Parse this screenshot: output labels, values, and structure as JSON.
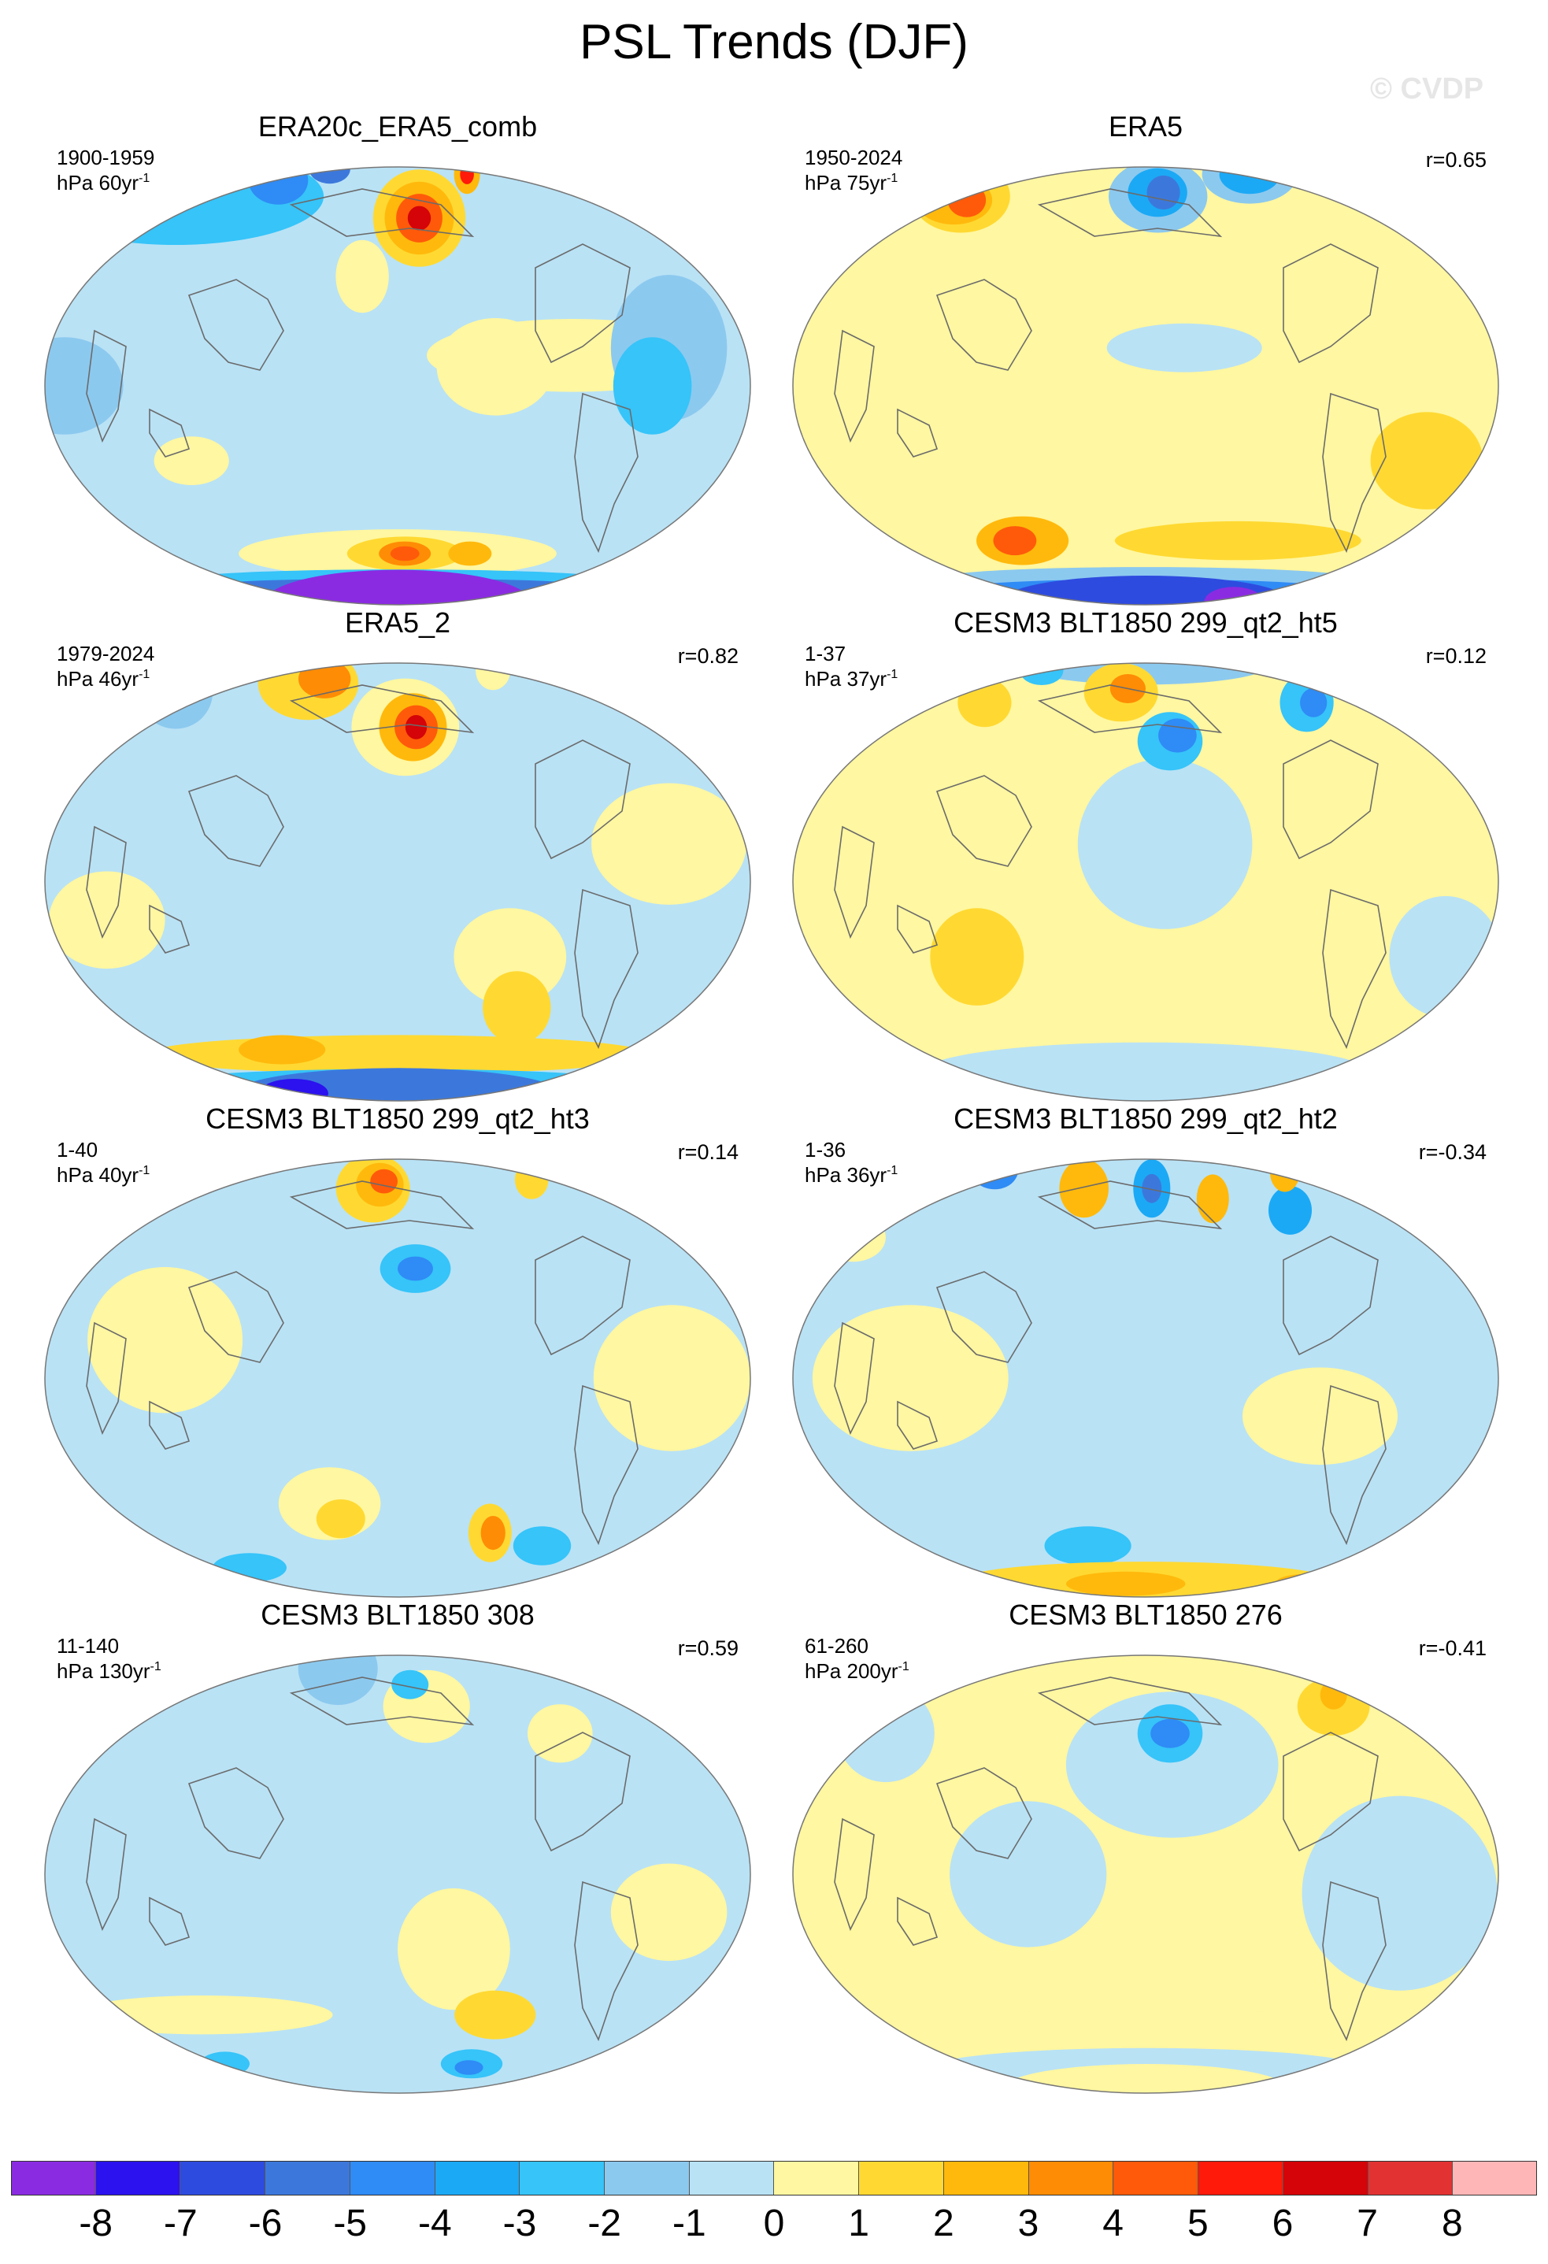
{
  "title": "PSL Trends (DJF)",
  "watermark": "© CVDP",
  "colors": {
    "-8": "#8a2be2",
    "-7": "#2b12ef",
    "-6": "#2e4bdf",
    "-5": "#3c78dc",
    "-4": "#2f8bf5",
    "-3": "#1ba9f5",
    "-2": "#36c4f9",
    "-1": "#8cc9ef",
    "0": "#b9e2f5",
    "1": "#fff7a1",
    "2": "#ffd932",
    "3": "#ffb90c",
    "4": "#ff8c05",
    "5": "#ff5a0a",
    "6": "#ff1a0a",
    "7": "#d40408",
    "8": "#e23232",
    "9": "#ffb6b6"
  },
  "colorbar": {
    "swatches": [
      "#8a2be2",
      "#2b12ef",
      "#2e4bdf",
      "#3c78dc",
      "#2f8bf5",
      "#1ba9f5",
      "#36c4f9",
      "#8cc9ef",
      "#b9e2f5",
      "#fff7a1",
      "#ffd932",
      "#ffb90c",
      "#ff8c05",
      "#ff5a0a",
      "#ff1a0a",
      "#d40408",
      "#e23232",
      "#ffb6b6"
    ],
    "ticks": [
      "-8",
      "-7",
      "-6",
      "-5",
      "-4",
      "-3",
      "-2",
      "-1",
      "0",
      "1",
      "2",
      "3",
      "4",
      "5",
      "6",
      "7",
      "8"
    ]
  },
  "panels": [
    {
      "title": "ERA20c_ERA5_comb",
      "period": "1900-1959",
      "units": "hPa 60yr",
      "unit_exp": "-1",
      "r": "",
      "base": 0,
      "blobs": [
        {
          "lon": -165,
          "lat": 50,
          "rx": 32,
          "ry": 20,
          "level": 2
        },
        {
          "lon": -165,
          "lat": 50,
          "rx": 24,
          "ry": 15,
          "level": 3
        },
        {
          "lon": -165,
          "lat": 50,
          "rx": 16,
          "ry": 10,
          "level": 5
        },
        {
          "lon": -165,
          "lat": 50,
          "rx": 8,
          "ry": 5,
          "level": 7
        },
        {
          "lon": -90,
          "lat": 8,
          "rx": 75,
          "ry": 15,
          "level": 1
        },
        {
          "lon": 160,
          "lat": 30,
          "rx": 15,
          "ry": 15,
          "level": 1
        },
        {
          "lon": -130,
          "lat": 5,
          "rx": 30,
          "ry": 20,
          "level": 1
        },
        {
          "lon": 0,
          "lat": 60,
          "rx": 120,
          "ry": 20,
          "level": -2
        },
        {
          "lon": 60,
          "lat": 70,
          "rx": 30,
          "ry": 10,
          "level": -4
        },
        {
          "lon": 80,
          "lat": 82,
          "rx": 30,
          "ry": 6,
          "level": -5
        },
        {
          "lon": -100,
          "lat": 75,
          "rx": 15,
          "ry": 8,
          "level": 3
        },
        {
          "lon": -100,
          "lat": 75,
          "rx": 8,
          "ry": 4,
          "level": 6
        },
        {
          "lon": -40,
          "lat": 10,
          "rx": 30,
          "ry": 30,
          "level": -1
        },
        {
          "lon": -50,
          "lat": 0,
          "rx": 20,
          "ry": 20,
          "level": -2
        },
        {
          "lon": 10,
          "lat": 0,
          "rx": 30,
          "ry": 20,
          "level": -1
        },
        {
          "lon": 70,
          "lat": -20,
          "rx": 20,
          "ry": 10,
          "level": 1
        },
        {
          "lon": 180,
          "lat": -50,
          "rx": 110,
          "ry": 10,
          "level": 1
        },
        {
          "lon": -175,
          "lat": -50,
          "rx": 40,
          "ry": 7,
          "level": 2
        },
        {
          "lon": -175,
          "lat": -50,
          "rx": 18,
          "ry": 5,
          "level": 4
        },
        {
          "lon": -175,
          "lat": -50,
          "rx": 10,
          "ry": 3,
          "level": 5
        },
        {
          "lon": -130,
          "lat": -50,
          "rx": 15,
          "ry": 5,
          "level": 3
        },
        {
          "lon": 180,
          "lat": -62,
          "rx": 180,
          "ry": 4,
          "level": -2
        },
        {
          "lon": 180,
          "lat": -66,
          "rx": 180,
          "ry": 3,
          "level": -5
        },
        {
          "lon": 180,
          "lat": -80,
          "rx": 180,
          "ry": 13,
          "level": -8
        }
      ]
    },
    {
      "title": "ERA5",
      "period": "1950-2024",
      "units": "hPa 75yr",
      "unit_exp": "-1",
      "r": "r=0.65",
      "base": 1,
      "blobs": [
        {
          "lon": -170,
          "lat": 60,
          "rx": 40,
          "ry": 15,
          "level": -1
        },
        {
          "lon": -170,
          "lat": 62,
          "rx": 25,
          "ry": 10,
          "level": -3
        },
        {
          "lon": -165,
          "lat": 62,
          "rx": 14,
          "ry": 7,
          "level": -5
        },
        {
          "lon": -60,
          "lat": 75,
          "rx": 55,
          "ry": 12,
          "level": -1
        },
        {
          "lon": -60,
          "lat": 75,
          "rx": 35,
          "ry": 8,
          "level": -3
        },
        {
          "lon": 30,
          "lat": 60,
          "rx": 40,
          "ry": 15,
          "level": 2
        },
        {
          "lon": 30,
          "lat": 58,
          "rx": 30,
          "ry": 10,
          "level": 3
        },
        {
          "lon": 40,
          "lat": 58,
          "rx": 15,
          "ry": 7,
          "level": 5
        },
        {
          "lon": -160,
          "lat": 10,
          "rx": 40,
          "ry": 10,
          "level": 0
        },
        {
          "lon": -120,
          "lat": -45,
          "rx": 80,
          "ry": 8,
          "level": 2
        },
        {
          "lon": 100,
          "lat": -45,
          "rx": 30,
          "ry": 10,
          "level": 3
        },
        {
          "lon": 95,
          "lat": -45,
          "rx": 14,
          "ry": 6,
          "level": 5
        },
        {
          "lon": -30,
          "lat": -20,
          "rx": 30,
          "ry": 20,
          "level": 2
        },
        {
          "lon": 180,
          "lat": -62,
          "rx": 180,
          "ry": 5,
          "level": -1
        },
        {
          "lon": 180,
          "lat": -68,
          "rx": 180,
          "ry": 4,
          "level": -4
        },
        {
          "lon": 180,
          "lat": -78,
          "rx": 180,
          "ry": 10,
          "level": -6
        },
        {
          "lon": -60,
          "lat": -80,
          "rx": 40,
          "ry": 6,
          "level": -8
        }
      ]
    },
    {
      "title": "ERA5_2",
      "period": "1979-2024",
      "units": "hPa 46yr",
      "unit_exp": "-1",
      "r": "r=0.82",
      "base": 0,
      "blobs": [
        {
          "lon": -175,
          "lat": 45,
          "rx": 35,
          "ry": 20,
          "level": 1
        },
        {
          "lon": -170,
          "lat": 45,
          "rx": 22,
          "ry": 14,
          "level": 3
        },
        {
          "lon": -168,
          "lat": 45,
          "rx": 14,
          "ry": 9,
          "level": 5
        },
        {
          "lon": -168,
          "lat": 45,
          "rx": 7,
          "ry": 5,
          "level": 7
        },
        {
          "lon": 100,
          "lat": 65,
          "rx": 45,
          "ry": 15,
          "level": 2
        },
        {
          "lon": 110,
          "lat": 68,
          "rx": 25,
          "ry": 8,
          "level": 4
        },
        {
          "lon": -70,
          "lat": 75,
          "rx": 20,
          "ry": 8,
          "level": 1
        },
        {
          "lon": 0,
          "lat": 60,
          "rx": 30,
          "ry": 15,
          "level": -1
        },
        {
          "lon": -120,
          "lat": -20,
          "rx": 30,
          "ry": 20,
          "level": 1
        },
        {
          "lon": -110,
          "lat": -35,
          "rx": 20,
          "ry": 15,
          "level": 2
        },
        {
          "lon": -40,
          "lat": 10,
          "rx": 40,
          "ry": 25,
          "level": 1
        },
        {
          "lon": 30,
          "lat": -10,
          "rx": 30,
          "ry": 20,
          "level": 1
        },
        {
          "lon": 180,
          "lat": -52,
          "rx": 180,
          "ry": 8,
          "level": 2
        },
        {
          "lon": 100,
          "lat": -50,
          "rx": 30,
          "ry": 6,
          "level": 3
        },
        {
          "lon": 180,
          "lat": -64,
          "rx": 180,
          "ry": 4,
          "level": -2
        },
        {
          "lon": 180,
          "lat": -74,
          "rx": 180,
          "ry": 10,
          "level": -5
        },
        {
          "lon": 60,
          "lat": -75,
          "rx": 40,
          "ry": 6,
          "level": -7
        }
      ]
    },
    {
      "title": "CESM3 BLT1850 299_qt2_ht5",
      "period": "1-37",
      "units": "hPa 37yr",
      "unit_exp": "-1",
      "r": "r=0.12",
      "base": 1,
      "blobs": [
        {
          "lon": 180,
          "lat": 82,
          "rx": 180,
          "ry": 8,
          "level": -1
        },
        {
          "lon": -170,
          "lat": 10,
          "rx": 45,
          "ry": 35,
          "level": 0
        },
        {
          "lon": -165,
          "lat": 40,
          "rx": 20,
          "ry": 12,
          "level": -2
        },
        {
          "lon": -160,
          "lat": 42,
          "rx": 12,
          "ry": 7,
          "level": -4
        },
        {
          "lon": 160,
          "lat": 60,
          "rx": 30,
          "ry": 12,
          "level": 2
        },
        {
          "lon": 165,
          "lat": 62,
          "rx": 15,
          "ry": 6,
          "level": 4
        },
        {
          "lon": -60,
          "lat": 55,
          "rx": 20,
          "ry": 12,
          "level": -2
        },
        {
          "lon": -55,
          "lat": 55,
          "rx": 10,
          "ry": 6,
          "level": -4
        },
        {
          "lon": 60,
          "lat": 55,
          "rx": 20,
          "ry": 10,
          "level": 2
        },
        {
          "lon": 60,
          "lat": 75,
          "rx": 25,
          "ry": 6,
          "level": -2
        },
        {
          "lon": -20,
          "lat": -20,
          "rx": 30,
          "ry": 25,
          "level": 0
        },
        {
          "lon": 90,
          "lat": -20,
          "rx": 25,
          "ry": 20,
          "level": 2
        },
        {
          "lon": -100,
          "lat": -70,
          "rx": 20,
          "ry": 8,
          "level": -2
        },
        {
          "lon": -95,
          "lat": -72,
          "rx": 10,
          "ry": 4,
          "level": -4
        },
        {
          "lon": 180,
          "lat": -60,
          "rx": 180,
          "ry": 12,
          "level": 0
        }
      ]
    },
    {
      "title": "CESM3 BLT1850 299_qt2_ht3",
      "period": "1-40",
      "units": "hPa 40yr",
      "unit_exp": "-1",
      "r": "r=0.14",
      "base": 0,
      "blobs": [
        {
          "lon": 160,
          "lat": 60,
          "rx": 30,
          "ry": 14,
          "level": 2
        },
        {
          "lon": 165,
          "lat": 62,
          "rx": 20,
          "ry": 9,
          "level": 3
        },
        {
          "lon": 168,
          "lat": 64,
          "rx": 12,
          "ry": 5,
          "level": 5
        },
        {
          "lon": -170,
          "lat": 30,
          "rx": 20,
          "ry": 10,
          "level": -2
        },
        {
          "lon": -170,
          "lat": 30,
          "rx": 10,
          "ry": 5,
          "level": -4
        },
        {
          "lon": -60,
          "lat": 65,
          "rx": 15,
          "ry": 8,
          "level": 2
        },
        {
          "lon": 60,
          "lat": 10,
          "rx": 40,
          "ry": 30,
          "level": 1
        },
        {
          "lon": -40,
          "lat": 0,
          "rx": 40,
          "ry": 30,
          "level": 1
        },
        {
          "lon": 140,
          "lat": -35,
          "rx": 30,
          "ry": 15,
          "level": 1
        },
        {
          "lon": 145,
          "lat": -40,
          "rx": 15,
          "ry": 8,
          "level": 2
        },
        {
          "lon": -120,
          "lat": -45,
          "rx": 14,
          "ry": 12,
          "level": 2
        },
        {
          "lon": -118,
          "lat": -45,
          "rx": 8,
          "ry": 7,
          "level": 4
        },
        {
          "lon": -80,
          "lat": -50,
          "rx": 20,
          "ry": 8,
          "level": -2
        },
        {
          "lon": 60,
          "lat": -60,
          "rx": 30,
          "ry": 6,
          "level": -2
        }
      ]
    },
    {
      "title": "CESM3 BLT1850 299_qt2_ht2",
      "period": "1-36",
      "units": "hPa 36yr",
      "unit_exp": "-1",
      "r": "r=-0.34",
      "base": 0,
      "blobs": [
        {
          "lon": 130,
          "lat": 60,
          "rx": 20,
          "ry": 12,
          "level": 3
        },
        {
          "lon": -175,
          "lat": 60,
          "rx": 15,
          "ry": 12,
          "level": -3
        },
        {
          "lon": -175,
          "lat": 60,
          "rx": 8,
          "ry": 6,
          "level": -5
        },
        {
          "lon": -130,
          "lat": 55,
          "rx": 12,
          "ry": 10,
          "level": 3
        },
        {
          "lon": -80,
          "lat": 50,
          "rx": 15,
          "ry": 10,
          "level": -3
        },
        {
          "lon": -40,
          "lat": 70,
          "rx": 15,
          "ry": 8,
          "level": 3
        },
        {
          "lon": 20,
          "lat": 72,
          "rx": 25,
          "ry": 8,
          "level": -4
        },
        {
          "lon": 0,
          "lat": 40,
          "rx": 20,
          "ry": 10,
          "level": 1
        },
        {
          "lon": 60,
          "lat": 0,
          "rx": 50,
          "ry": 30,
          "level": 1
        },
        {
          "lon": -90,
          "lat": -10,
          "rx": 40,
          "ry": 20,
          "level": 1
        },
        {
          "lon": 140,
          "lat": -50,
          "rx": 30,
          "ry": 8,
          "level": -2
        },
        {
          "lon": 180,
          "lat": -68,
          "rx": 180,
          "ry": 8,
          "level": 2
        },
        {
          "lon": 160,
          "lat": -70,
          "rx": 60,
          "ry": 5,
          "level": 3
        },
        {
          "lon": -20,
          "lat": -70,
          "rx": 30,
          "ry": 4,
          "level": 3
        }
      ]
    },
    {
      "title": "CESM3 BLT1850 308",
      "period": "11-140",
      "units": "hPa 130yr",
      "unit_exp": "-1",
      "r": "r=0.59",
      "base": 0,
      "blobs": [
        {
          "lon": 120,
          "lat": 70,
          "rx": 40,
          "ry": 15,
          "level": -1
        },
        {
          "lon": -160,
          "lat": 50,
          "rx": 30,
          "ry": 15,
          "level": 1
        },
        {
          "lon": -170,
          "lat": 60,
          "rx": 15,
          "ry": 6,
          "level": -2
        },
        {
          "lon": -80,
          "lat": 40,
          "rx": 20,
          "ry": 12,
          "level": 1
        },
        {
          "lon": -150,
          "lat": -20,
          "rx": 30,
          "ry": 25,
          "level": 1
        },
        {
          "lon": -120,
          "lat": -40,
          "rx": 25,
          "ry": 10,
          "level": 2
        },
        {
          "lon": -40,
          "lat": -10,
          "rx": 30,
          "ry": 20,
          "level": 1
        },
        {
          "lon": 60,
          "lat": -40,
          "rx": 80,
          "ry": 8,
          "level": 1
        },
        {
          "lon": 180,
          "lat": -55,
          "rx": 180,
          "ry": 6,
          "level": 0
        },
        {
          "lon": -120,
          "lat": -60,
          "rx": 25,
          "ry": 6,
          "level": -2
        },
        {
          "lon": -120,
          "lat": -62,
          "rx": 12,
          "ry": 3,
          "level": -4
        },
        {
          "lon": 40,
          "lat": -60,
          "rx": 20,
          "ry": 5,
          "level": -2
        }
      ]
    },
    {
      "title": "CESM3 BLT1850 276",
      "period": "61-260",
      "units": "hPa 200yr",
      "unit_exp": "-1",
      "r": "r=-0.41",
      "base": 1,
      "blobs": [
        {
          "lon": -165,
          "lat": 30,
          "rx": 60,
          "ry": 30,
          "level": 0
        },
        {
          "lon": -165,
          "lat": 40,
          "rx": 20,
          "ry": 12,
          "level": -2
        },
        {
          "lon": -165,
          "lat": 40,
          "rx": 12,
          "ry": 6,
          "level": -4
        },
        {
          "lon": -50,
          "lat": 50,
          "rx": 25,
          "ry": 12,
          "level": 2
        },
        {
          "lon": -40,
          "lat": 55,
          "rx": 10,
          "ry": 6,
          "level": 3
        },
        {
          "lon": 20,
          "lat": 40,
          "rx": 30,
          "ry": 20,
          "level": 0
        },
        {
          "lon": -50,
          "lat": -5,
          "rx": 50,
          "ry": 40,
          "level": 0
        },
        {
          "lon": 120,
          "lat": 0,
          "rx": 40,
          "ry": 30,
          "level": 0
        },
        {
          "lon": 180,
          "lat": -45,
          "rx": 180,
          "ry": 8,
          "level": 1
        },
        {
          "lon": 180,
          "lat": -62,
          "rx": 180,
          "ry": 8,
          "level": 0
        },
        {
          "lon": 180,
          "lat": -78,
          "rx": 180,
          "ry": 10,
          "level": 1
        }
      ]
    }
  ]
}
